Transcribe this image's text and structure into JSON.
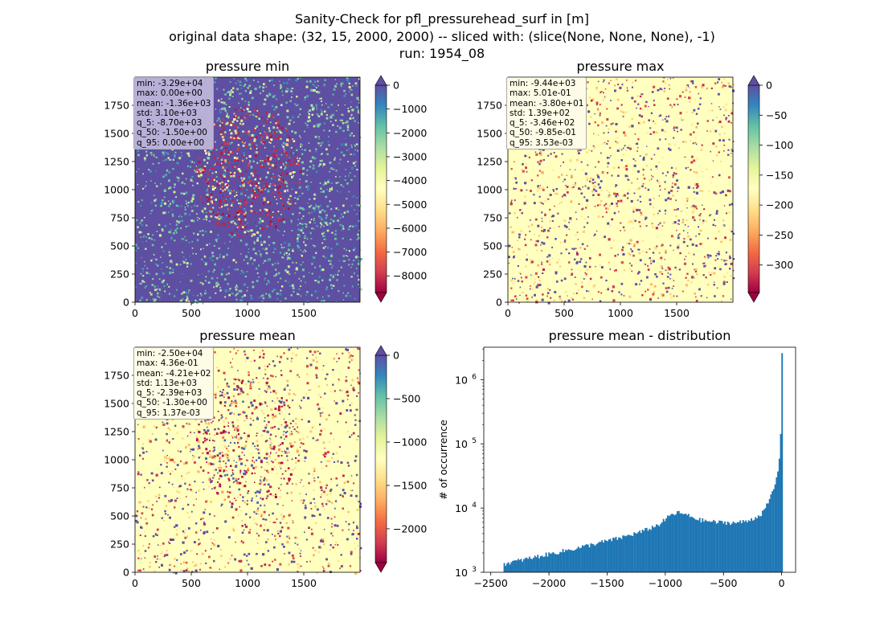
{
  "figure": {
    "title_line1": "Sanity-Check for pfl_pressurehead_surf in [m]",
    "title_line2": "original data shape: (32, 15, 2000, 2000) -- sliced with: (slice(None, None, None), -1)",
    "title_line3": "run: 1954_08"
  },
  "colors": {
    "spectral_stops": [
      "#9e0142",
      "#d53e4f",
      "#f46d43",
      "#fdae61",
      "#fee08b",
      "#ffffbf",
      "#e6f598",
      "#abdda4",
      "#66c2a5",
      "#3288bd",
      "#5e4fa2"
    ],
    "hist_bar": "#1f77b4"
  },
  "panels": {
    "min": {
      "title": "pressure min",
      "stats": [
        "min: -3.29e+04",
        "max: 0.00e+00",
        "mean: -1.36e+03",
        "std: 3.10e+03",
        "q_5: -8.70e+03",
        "q_50: -1.50e+00",
        "q_95: 0.00e+00"
      ],
      "stats_bg": "#b9b0d8",
      "xticks": [
        "0",
        "500",
        "1000",
        "1500"
      ],
      "yticks": [
        "0",
        "250",
        "500",
        "750",
        "1000",
        "1250",
        "1500",
        "1750"
      ],
      "cbar_ticks": [
        "0",
        "−1000",
        "−2000",
        "−3000",
        "−4000",
        "−5000",
        "−6000",
        "−7000",
        "−8000"
      ],
      "cbar_range": [
        -8700,
        0
      ],
      "cbar_tick_values": [
        0,
        -1000,
        -2000,
        -3000,
        -4000,
        -5000,
        -6000,
        -7000,
        -8000
      ]
    },
    "max": {
      "title": "pressure max",
      "stats": [
        "min: -9.44e+03",
        "max: 5.01e-01",
        "mean: -3.80e+01",
        "std: 1.39e+02",
        "q_5: -3.46e+02",
        "q_50: -9.85e-01",
        "q_95: 3.53e-03"
      ],
      "stats_bg": "#fefbe6",
      "xticks": [
        "0",
        "500",
        "1000",
        "1500"
      ],
      "yticks": [
        "0",
        "250",
        "500",
        "750",
        "1000",
        "1250",
        "1500",
        "1750"
      ],
      "cbar_ticks": [
        "0",
        "−50",
        "−100",
        "−150",
        "−200",
        "−250",
        "−300"
      ],
      "cbar_range": [
        -346,
        0
      ],
      "cbar_tick_values": [
        0,
        -50,
        -100,
        -150,
        -200,
        -250,
        -300
      ]
    },
    "mean": {
      "title": "pressure mean",
      "stats": [
        "min: -2.50e+04",
        "max: 4.36e-01",
        "mean: -4.21e+02",
        "std: 1.13e+03",
        "q_5: -2.39e+03",
        "q_50: -1.30e+00",
        "q_95: 1.37e-03"
      ],
      "stats_bg": "#fefbe6",
      "xticks": [
        "0",
        "500",
        "1000",
        "1500"
      ],
      "yticks": [
        "0",
        "250",
        "500",
        "750",
        "1000",
        "1250",
        "1500",
        "1750"
      ],
      "cbar_ticks": [
        "0",
        "−500",
        "−1000",
        "−1500",
        "−2000"
      ],
      "cbar_range": [
        -2390,
        0
      ],
      "cbar_tick_values": [
        0,
        -500,
        -1000,
        -1500,
        -2000
      ]
    }
  },
  "chart_data": {
    "type": "bar",
    "title": "pressure mean - distribution",
    "ylabel": "# of occurrence",
    "xlabel": "",
    "xlim": [
      -2560,
      120
    ],
    "ylim": [
      1000,
      3200000
    ],
    "yscale": "log",
    "xticks": [
      "−2500",
      "−2000",
      "−1500",
      "−1000",
      "−500",
      "0"
    ],
    "xtick_values": [
      -2500,
      -2000,
      -1500,
      -1000,
      -500,
      0
    ],
    "yticks": [
      "10",
      "10",
      "10",
      "10"
    ],
    "ytick_exponents": [
      "3",
      "4",
      "5",
      "6"
    ],
    "ytick_values": [
      1000,
      10000,
      100000,
      1000000
    ],
    "series": [
      {
        "x": [
          -2390,
          -1750,
          -1400,
          -1200,
          -1050,
          -950,
          -880,
          -800,
          -700,
          -550,
          -400,
          -300,
          -200,
          -150,
          -100,
          -50,
          -30,
          -20,
          -10,
          -5,
          -2
        ],
        "values": [
          1350,
          2400,
          3400,
          4300,
          5600,
          7900,
          8500,
          7600,
          6500,
          6000,
          5900,
          6200,
          7500,
          9000,
          14000,
          25000,
          40000,
          60000,
          95000,
          300000,
          2400000
        ]
      }
    ]
  }
}
